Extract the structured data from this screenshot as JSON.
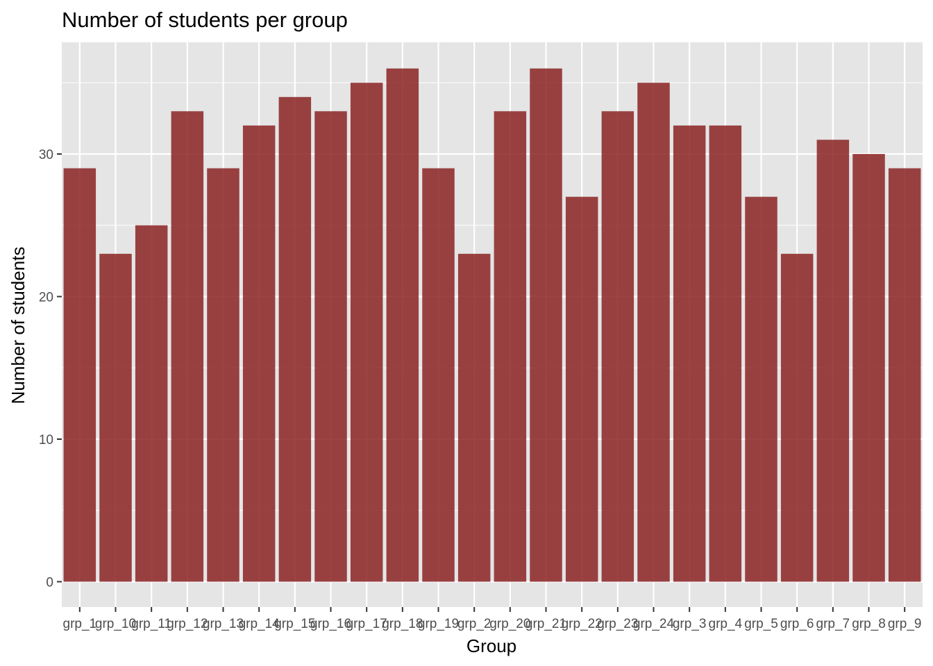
{
  "chart_data": {
    "type": "bar",
    "title": "Number of students per group",
    "xlabel": "Group",
    "ylabel": "Number of students",
    "categories": [
      "grp_1",
      "grp_10",
      "grp_11",
      "grp_12",
      "grp_13",
      "grp_14",
      "grp_15",
      "grp_16",
      "grp_17",
      "grp_18",
      "grp_19",
      "grp_2",
      "grp_20",
      "grp_21",
      "grp_22",
      "grp_23",
      "grp_24",
      "grp_3",
      "grp_4",
      "grp_5",
      "grp_6",
      "grp_7",
      "grp_8",
      "grp_9"
    ],
    "values": [
      29,
      23,
      25,
      33,
      29,
      32,
      34,
      33,
      35,
      36,
      29,
      23,
      33,
      36,
      27,
      33,
      35,
      32,
      32,
      27,
      23,
      31,
      30,
      29
    ],
    "ylim": [
      0,
      37.8
    ],
    "yticks": [
      0,
      10,
      20,
      30
    ],
    "grid": true,
    "legend": "none",
    "colors": {
      "bar": "#8b2323",
      "panel": "#e5e5e5",
      "gridline": "#ffffff",
      "tick_text": "#4d4d4d"
    }
  }
}
